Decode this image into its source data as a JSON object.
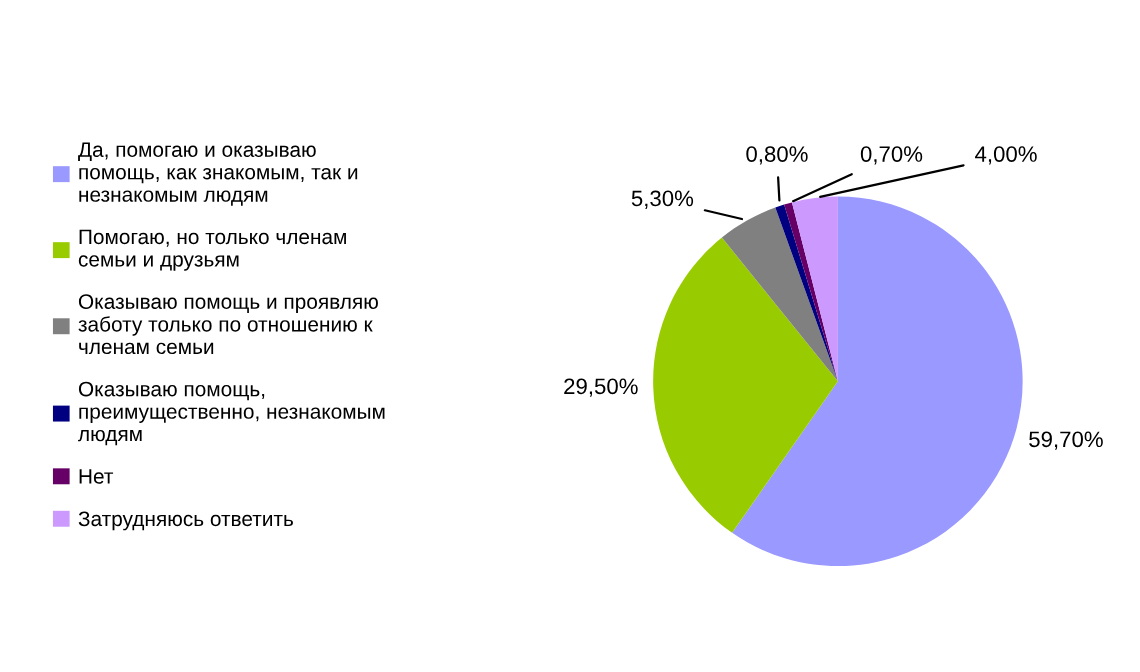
{
  "chart_data": {
    "type": "pie",
    "legend": "left",
    "categories": [
      "Да, помогаю и оказываю\nпомощь, как знакомым, так и\nнезнакомым людям",
      "Помогаю, но только членам\nсемьи и друзьям",
      "Оказываю помощь и проявляю\nзаботу только по отношению к\nчленам семьи",
      "Оказываю помощь,\nпреимущественно, незнакомым\nлюдям",
      "Нет",
      "Затрудняюсь ответить"
    ],
    "values": [
      59.7,
      29.5,
      5.3,
      0.8,
      0.7,
      4.0
    ],
    "value_labels": [
      "59,70%",
      "29,50%",
      "5,30%",
      "0,80%",
      "0,70%",
      "4,00%"
    ],
    "colors": [
      "#9999ff",
      "#99cc00",
      "#808080",
      "#000080",
      "#660066",
      "#cc99ff"
    ]
  }
}
